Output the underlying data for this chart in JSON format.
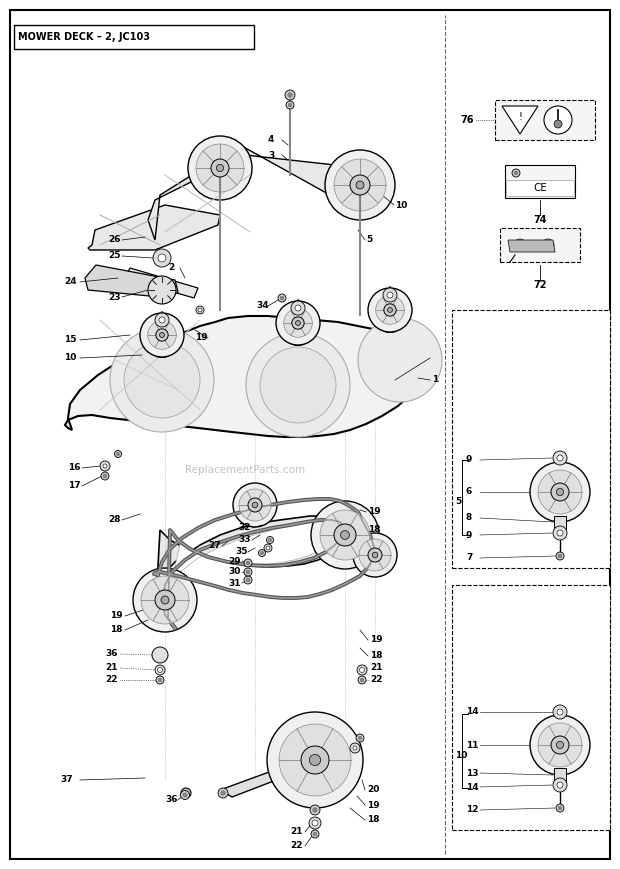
{
  "title": "MOWER DECK – 2, JC103",
  "bg_color": "#ffffff",
  "watermark": "ReplacementParts.com",
  "fig_w": 6.2,
  "fig_h": 8.69,
  "dpi": 100
}
